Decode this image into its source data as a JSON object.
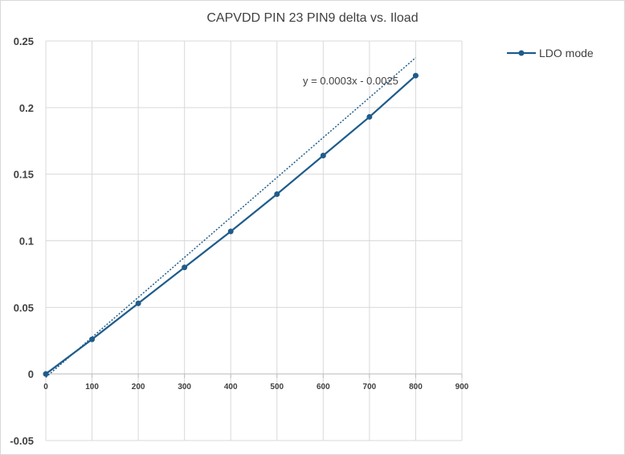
{
  "chart_data": {
    "type": "line",
    "title": "CAPVDD PIN 23 PIN9 delta vs. Iload",
    "xlabel": "",
    "ylabel": "",
    "xlim": [
      0,
      900
    ],
    "ylim": [
      -0.05,
      0.25
    ],
    "x_ticks": [
      "0",
      "100",
      "200",
      "300",
      "400",
      "500",
      "600",
      "700",
      "800",
      "900"
    ],
    "y_ticks": [
      "-0.05",
      "0",
      "0.05",
      "0.1",
      "0.15",
      "0.2",
      "0.25"
    ],
    "grid": true,
    "legend_position": "top-right",
    "series": [
      {
        "name": "LDO mode",
        "color": "#1f5c8b",
        "x": [
          0,
          100,
          200,
          300,
          400,
          500,
          600,
          700,
          800
        ],
        "y": [
          0,
          0.026,
          0.053,
          0.08,
          0.107,
          0.135,
          0.164,
          0.193,
          0.224
        ]
      }
    ],
    "trendline": {
      "series": "LDO mode",
      "slope": 0.0003,
      "intercept": -0.0025,
      "equation": "y = 0.0003x - 0.0025"
    }
  }
}
